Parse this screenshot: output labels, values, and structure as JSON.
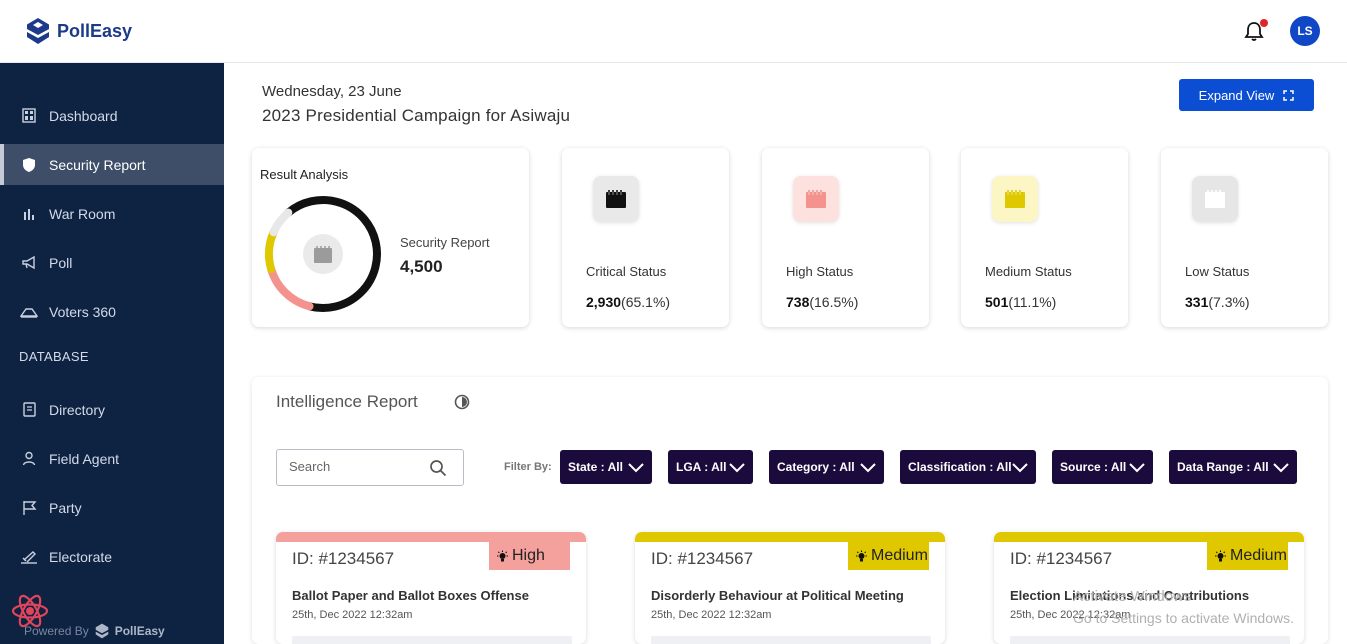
{
  "app": {
    "brand": "PollEasy",
    "user_initials": "LS"
  },
  "sidebar": {
    "items": [
      {
        "label": "Dashboard",
        "icon": "dashboard-icon"
      },
      {
        "label": "Security Report",
        "icon": "shield-icon",
        "active": true
      },
      {
        "label": "War Room",
        "icon": "bar-chart-icon"
      },
      {
        "label": "Poll",
        "icon": "megaphone-icon"
      },
      {
        "label": "Voters 360",
        "icon": "voters-icon"
      }
    ],
    "section_label": "DATABASE",
    "db_items": [
      {
        "label": "Directory",
        "icon": "book-icon"
      },
      {
        "label": "Field Agent",
        "icon": "user-icon"
      },
      {
        "label": "Party",
        "icon": "flag-icon"
      },
      {
        "label": "Electorate",
        "icon": "ballot-icon"
      }
    ],
    "powered_by": "Powered By",
    "powered_brand": "PollEasy"
  },
  "header": {
    "date": "Wednesday, 23 June",
    "campaign": "2023 Presidential Campaign for Asiwaju",
    "expand_label": "Expand View"
  },
  "result_analysis": {
    "title": "Result Analysis",
    "label": "Security Report",
    "value": "4,500",
    "segments": [
      {
        "name": "Critical",
        "percent": 65.1,
        "color": "#111111"
      },
      {
        "name": "High",
        "percent": 16.5,
        "color": "#f4928e"
      },
      {
        "name": "Medium",
        "percent": 11.1,
        "color": "#e0c800"
      },
      {
        "name": "Low",
        "percent": 7.3,
        "color": "#e8e8e8"
      }
    ]
  },
  "stats": [
    {
      "label": "Critical Status",
      "value": "2,930",
      "percent": "(65.1%)",
      "color": "#111111",
      "bg": "#e9e9e9"
    },
    {
      "label": "High Status",
      "value": "738",
      "percent": "(16.5%)",
      "color": "#f4928e",
      "bg": "#fde1df"
    },
    {
      "label": "Medium Status",
      "value": "501",
      "percent": "(11.1%)",
      "color": "#e0c800",
      "bg": "#fcf6c4"
    },
    {
      "label": "Low Status",
      "value": "331",
      "percent": "(7.3%)",
      "color": "#ffffff",
      "bg": "#e6e6e6"
    }
  ],
  "intel": {
    "title": "Intelligence Report",
    "search_placeholder": "Search",
    "filter_by": "Filter By:",
    "filters": [
      {
        "label": "State : All"
      },
      {
        "label": "LGA : All"
      },
      {
        "label": "Category : All"
      },
      {
        "label": "Classification : All"
      },
      {
        "label": "Source : All"
      },
      {
        "label": "Data Range : All"
      }
    ]
  },
  "reports": [
    {
      "id": "ID: #1234567",
      "severity": "High",
      "color": "#f4a09c",
      "title": "Ballot Paper and Ballot Boxes Offense",
      "date": "25th, Dec 2022 12:32am"
    },
    {
      "id": "ID: #1234567",
      "severity": "Medium",
      "color": "#e0c800",
      "title": "Disorderly Behaviour at Political Meeting",
      "date": "25th, Dec 2022 12:32am"
    },
    {
      "id": "ID: #1234567",
      "severity": "Medium",
      "color": "#e0c800",
      "title": "Election Limitations and Contributions",
      "date": "25th, Dec 2022 12:32am"
    }
  ],
  "watermark": {
    "line1": "Activate Windows",
    "line2": "Go to Settings to activate Windows."
  }
}
